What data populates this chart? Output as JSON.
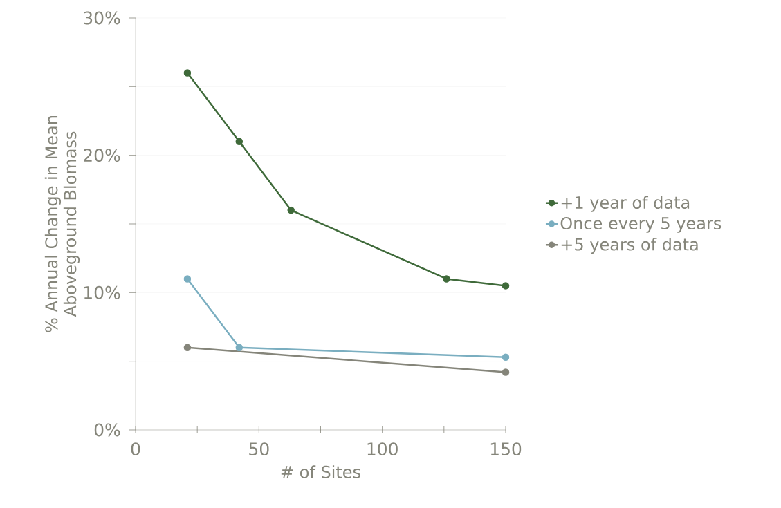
{
  "chart_data": {
    "type": "line",
    "xlabel": "# of Sites",
    "ylabel": "% Annual Change in Mean Aboveground Blomass",
    "xlim": [
      0,
      150
    ],
    "ylim": [
      0,
      30
    ],
    "xticks": [
      0,
      {
        "value": 25,
        "label": null
      },
      50,
      {
        "value": 75,
        "label": null
      },
      100,
      {
        "value": 125,
        "label": null
      },
      150
    ],
    "yticks": [
      {
        "value": 0,
        "label": "0%"
      },
      {
        "value": 5,
        "label": null
      },
      {
        "value": 10,
        "label": "10%"
      },
      {
        "value": 15,
        "label": null
      },
      {
        "value": 20,
        "label": "20%"
      },
      {
        "value": 25,
        "label": null
      },
      {
        "value": 30,
        "label": "30%"
      }
    ],
    "grid": "y",
    "legend": "right",
    "marker": "circle",
    "line_style": "solid",
    "series": [
      {
        "name": "+1 year of data",
        "color": "#3f6a3a",
        "x": [
          21,
          42,
          63,
          126,
          150
        ],
        "values": [
          26,
          21,
          16,
          11,
          10.5
        ]
      },
      {
        "name": "Once every 5 years",
        "color": "#7aaec0",
        "x": [
          21,
          42,
          150
        ],
        "values": [
          11,
          6,
          5.3
        ]
      },
      {
        "name": "+5 years of data",
        "color": "#85857a",
        "x": [
          21,
          150
        ],
        "values": [
          6,
          4.2
        ]
      }
    ]
  }
}
